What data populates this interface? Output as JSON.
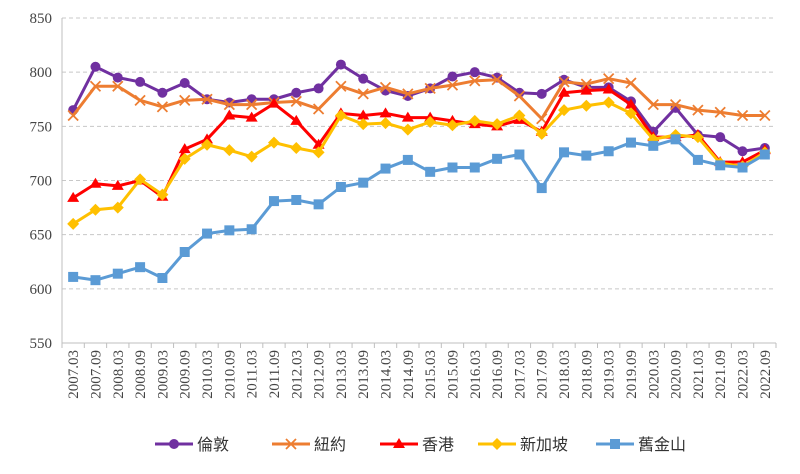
{
  "chart_data": {
    "type": "line",
    "title": "",
    "xlabel": "",
    "ylabel": "",
    "ylim": [
      550,
      850
    ],
    "yticks": [
      550,
      600,
      650,
      700,
      750,
      800,
      850
    ],
    "grid": "horizontal dashed",
    "legend_position": "bottom",
    "categories": [
      "2007.03",
      "2007.09",
      "2008.03",
      "2008.09",
      "2009.03",
      "2009.09",
      "2010.03",
      "2010.09",
      "2011.03",
      "2011.09",
      "2012.03",
      "2012.09",
      "2013.03",
      "2013.09",
      "2014.03",
      "2014.09",
      "2015.03",
      "2015.09",
      "2016.03",
      "2016.09",
      "2017.03",
      "2017.09",
      "2018.03",
      "2018.09",
      "2019.03",
      "2019.09",
      "2020.03",
      "2020.09",
      "2021.03",
      "2021.09",
      "2022.03",
      "2022.09"
    ],
    "series": [
      {
        "name": "倫敦",
        "color": "#7030a0",
        "marker": "circle",
        "values": [
          765,
          805,
          795,
          791,
          781,
          790,
          775,
          772,
          775,
          775,
          781,
          785,
          807,
          794,
          783,
          778,
          785,
          796,
          800,
          795,
          781,
          780,
          793,
          786,
          786,
          773,
          745,
          767,
          742,
          740,
          727,
          730
        ]
      },
      {
        "name": "紐約",
        "color": "#ed7d31",
        "marker": "x",
        "values": [
          760,
          787,
          787,
          774,
          768,
          774,
          775,
          770,
          770,
          772,
          773,
          766,
          787,
          780,
          786,
          780,
          785,
          788,
          792,
          793,
          778,
          757,
          791,
          789,
          794,
          790,
          770,
          770,
          765,
          763,
          760,
          760
        ]
      },
      {
        "name": "香港",
        "color": "#ff0000",
        "marker": "triangle",
        "values": [
          684,
          697,
          695,
          700,
          685,
          729,
          738,
          760,
          758,
          771,
          755,
          733,
          762,
          760,
          762,
          758,
          758,
          755,
          752,
          750,
          756,
          745,
          781,
          783,
          784,
          770,
          740,
          740,
          742,
          717,
          717,
          728
        ]
      },
      {
        "name": "新加坡",
        "color": "#ffc000",
        "marker": "diamond",
        "values": [
          660,
          673,
          675,
          701,
          687,
          720,
          733,
          728,
          722,
          735,
          730,
          726,
          760,
          752,
          753,
          747,
          754,
          751,
          755,
          752,
          760,
          743,
          765,
          769,
          772,
          762,
          738,
          742,
          740,
          716,
          713,
          726
        ]
      },
      {
        "name": "舊金山",
        "color": "#5b9bd5",
        "marker": "square",
        "values": [
          611,
          608,
          614,
          620,
          610,
          634,
          651,
          654,
          655,
          681,
          682,
          678,
          694,
          698,
          711,
          719,
          708,
          712,
          712,
          720,
          724,
          693,
          726,
          723,
          727,
          735,
          732,
          738,
          719,
          714,
          712,
          724
        ]
      }
    ]
  }
}
